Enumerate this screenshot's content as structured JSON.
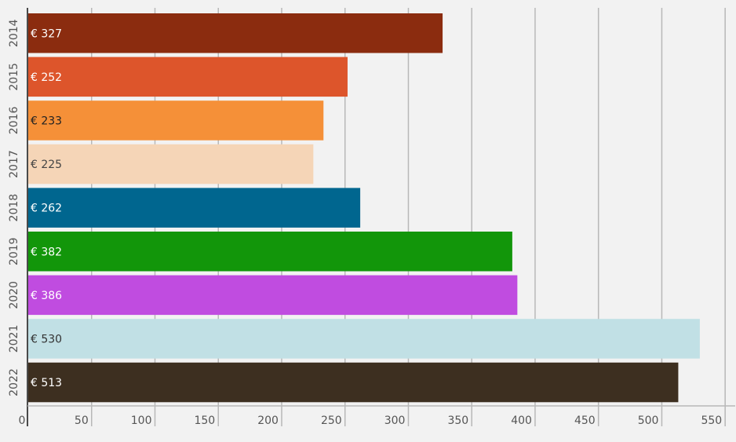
{
  "chart_data": {
    "type": "bar",
    "orientation": "horizontal",
    "categories": [
      "2014",
      "2015",
      "2016",
      "2017",
      "2018",
      "2019",
      "2020",
      "2021",
      "2022"
    ],
    "values": [
      327,
      252,
      233,
      225,
      262,
      382,
      386,
      530,
      513
    ],
    "value_labels": [
      "€ 327",
      "€ 252",
      "€ 233",
      "€ 225",
      "€ 262",
      "€ 382",
      "€ 386",
      "€ 530",
      "€ 513"
    ],
    "colors": [
      "#8b2c0f",
      "#dd552b",
      "#f59038",
      "#f5d5b7",
      "#00668f",
      "#12960a",
      "#c04ce0",
      "#c1e0e5",
      "#3d2f20"
    ],
    "label_colors": [
      "#ffffff",
      "#ffffff",
      "#222222",
      "#444444",
      "#ffffff",
      "#ffffff",
      "#ffffff",
      "#333333",
      "#ffffff"
    ],
    "x_ticks": [
      0,
      50,
      100,
      150,
      200,
      250,
      300,
      350,
      400,
      450,
      500,
      550
    ],
    "xlim": [
      0,
      550
    ],
    "grid": "vertical",
    "legend": "none",
    "title": "",
    "xlabel": "",
    "ylabel": ""
  }
}
